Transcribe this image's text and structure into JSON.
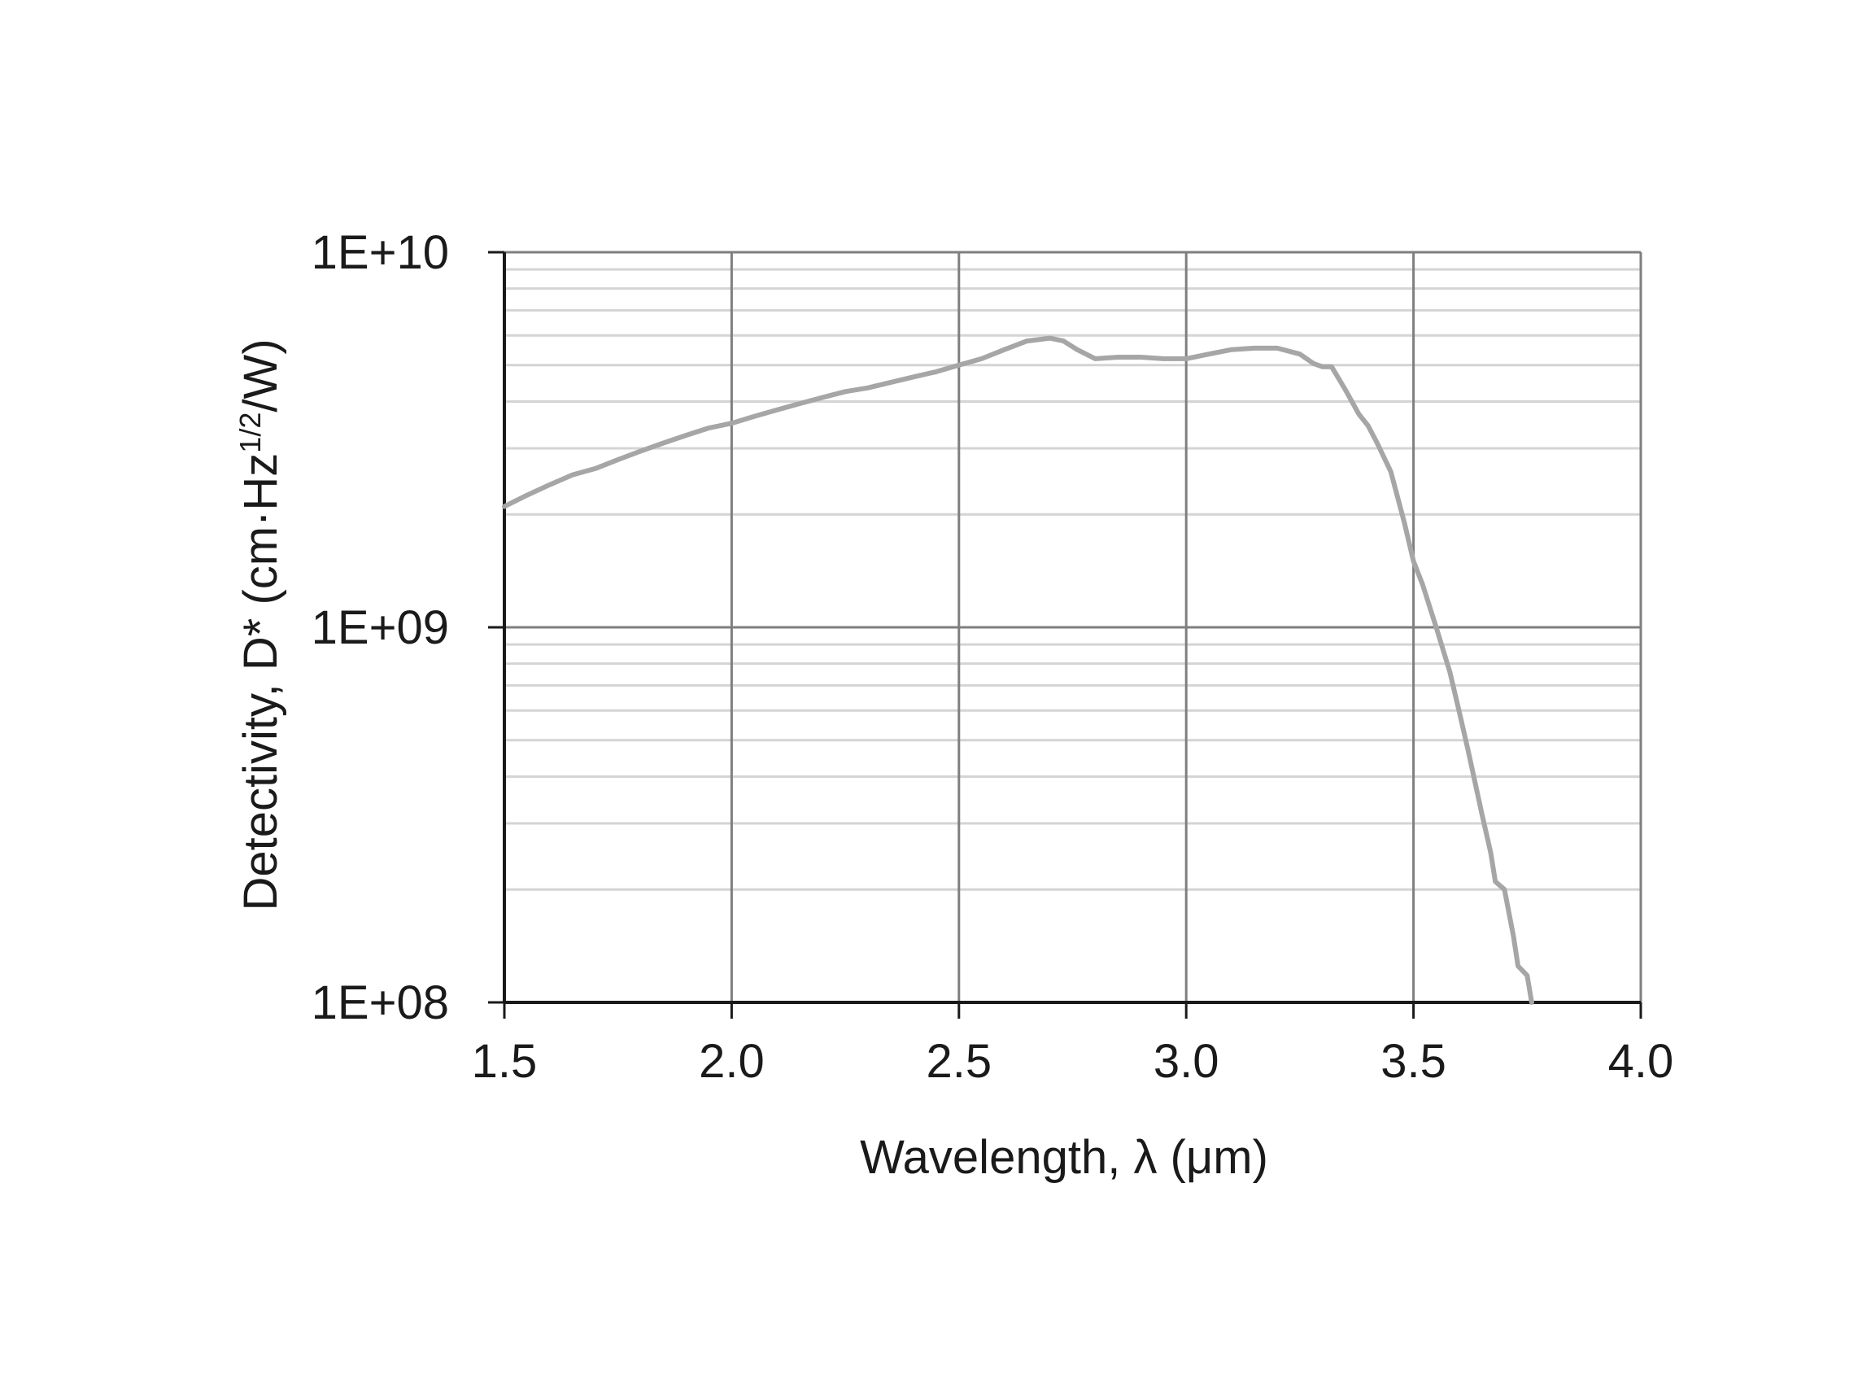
{
  "chart_data": {
    "type": "line",
    "xlabel": "Wavelength, λ (μm)",
    "ylabel": {
      "prefix": "Detectivity, D* (cm·Hz",
      "superscript": "1/2",
      "suffix": "/W)"
    },
    "xlim": [
      1.5,
      4.0
    ],
    "ylim": [
      100000000,
      10000000000
    ],
    "yscale": "log",
    "grid": true,
    "x_ticks": [
      "1.5",
      "2.0",
      "2.5",
      "3.0",
      "3.5",
      "4.0"
    ],
    "y_ticks": [
      "1E+08",
      "1E+09",
      "1E+10"
    ],
    "series": [
      {
        "color": "#a6a6a6",
        "x": [
          1.5,
          1.55,
          1.6,
          1.65,
          1.7,
          1.75,
          1.8,
          1.85,
          1.9,
          1.95,
          2.0,
          2.05,
          2.1,
          2.15,
          2.2,
          2.25,
          2.3,
          2.35,
          2.4,
          2.45,
          2.5,
          2.55,
          2.6,
          2.65,
          2.7,
          2.73,
          2.76,
          2.8,
          2.85,
          2.9,
          2.95,
          3.0,
          3.05,
          3.1,
          3.15,
          3.2,
          3.25,
          3.28,
          3.3,
          3.32,
          3.35,
          3.38,
          3.4,
          3.42,
          3.45,
          3.48,
          3.5,
          3.52,
          3.55,
          3.58,
          3.6,
          3.62,
          3.65,
          3.67,
          3.68,
          3.7,
          3.72,
          3.73,
          3.75,
          3.76
        ],
        "y": [
          2100000000,
          2250000000,
          2400000000,
          2550000000,
          2650000000,
          2800000000,
          2950000000,
          3100000000,
          3250000000,
          3400000000,
          3500000000,
          3650000000,
          3800000000,
          3950000000,
          4100000000,
          4250000000,
          4350000000,
          4500000000,
          4650000000,
          4800000000,
          5000000000,
          5200000000,
          5500000000,
          5800000000,
          5900000000,
          5800000000,
          5500000000,
          5200000000,
          5250000000,
          5250000000,
          5200000000,
          5200000000,
          5350000000,
          5500000000,
          5550000000,
          5550000000,
          5350000000,
          5050000000,
          4950000000,
          4950000000,
          4300000000,
          3700000000,
          3450000000,
          3100000000,
          2600000000,
          1900000000,
          1500000000,
          1300000000,
          1000000000,
          760000000,
          600000000,
          470000000,
          320000000,
          250000000,
          210000000,
          200000000,
          150000000,
          125000000,
          118000000,
          100000000
        ]
      }
    ]
  }
}
